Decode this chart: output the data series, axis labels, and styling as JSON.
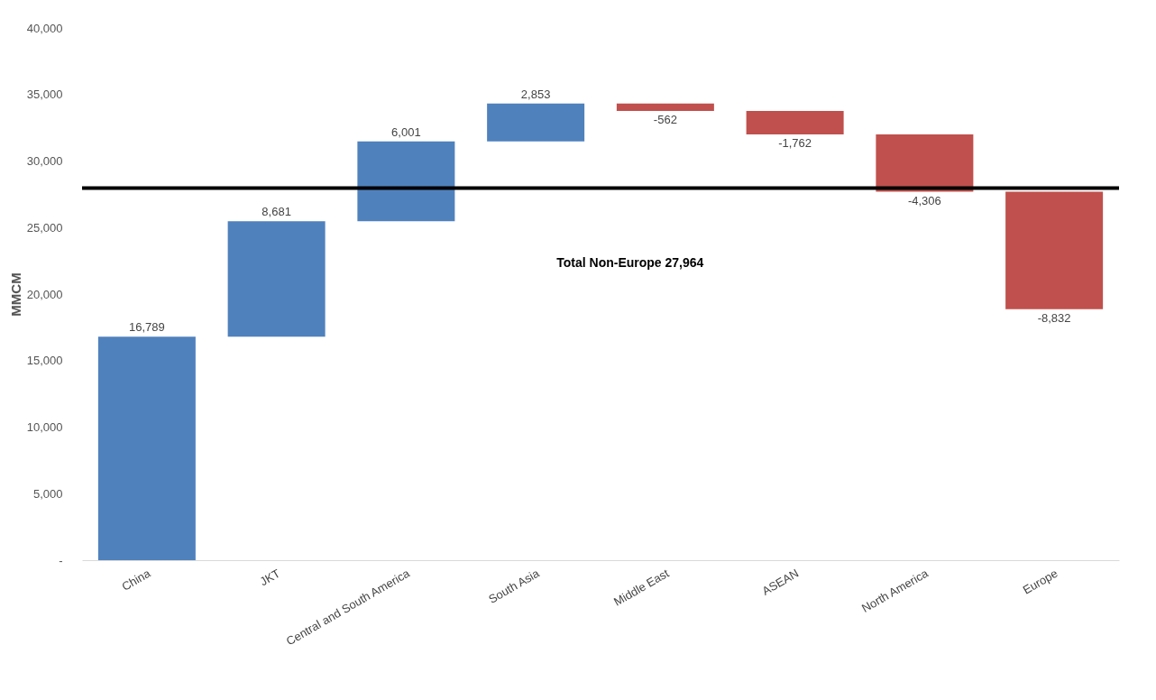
{
  "chart_data": {
    "type": "bar",
    "ylabel": "MMCM",
    "categories": [
      "China",
      "JKT",
      "Central and South America",
      "South Asia",
      "Middle East",
      "ASEAN",
      "North America",
      "Europe"
    ],
    "values": [
      16789,
      8681,
      6001,
      2853,
      -562,
      -1762,
      -4306,
      -8832
    ],
    "value_labels": [
      "16,789",
      "8,681",
      "6,001",
      "2,853",
      "-562",
      "-1,762",
      "-4,306",
      "-8,832"
    ],
    "base": [
      0,
      16789,
      25470,
      31471,
      34324,
      33762,
      32000,
      27694
    ],
    "colors": [
      "#4f81bd",
      "#4f81bd",
      "#4f81bd",
      "#4f81bd",
      "#c0504d",
      "#c0504d",
      "#c0504d",
      "#c0504d"
    ],
    "ylim": [
      0,
      40000
    ],
    "yticks": [
      {
        "value": 0,
        "label": "-"
      },
      {
        "value": 5000,
        "label": "5,000"
      },
      {
        "value": 10000,
        "label": "10,000"
      },
      {
        "value": 15000,
        "label": "15,000"
      },
      {
        "value": 20000,
        "label": "20,000"
      },
      {
        "value": 25000,
        "label": "25,000"
      },
      {
        "value": 30000,
        "label": "30,000"
      },
      {
        "value": 35000,
        "label": "35,000"
      },
      {
        "value": 40000,
        "label": "40,000"
      }
    ],
    "ref_lines": [
      {
        "axis": "y",
        "value": 27964,
        "label": "Total Non-Europe  27,964",
        "color": "#000000"
      }
    ],
    "grid": false
  }
}
